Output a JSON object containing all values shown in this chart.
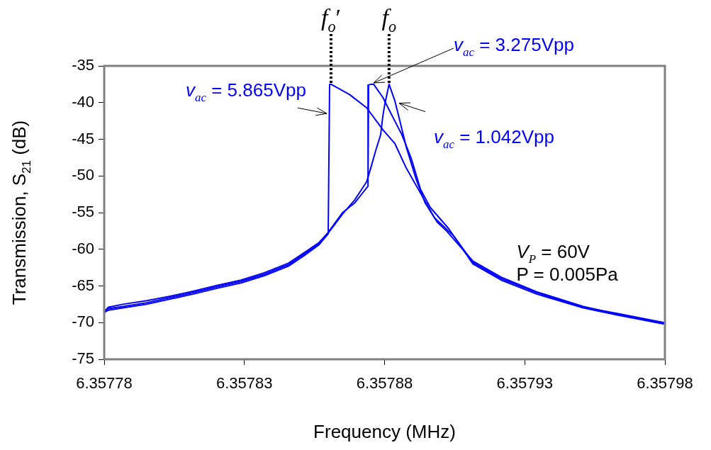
{
  "chart_data": {
    "type": "line",
    "xlabel": "Frequency (MHz)",
    "ylabel": "Transmission, S$_{21}$ (dB)",
    "xlim": [
      6.35778,
      6.35798
    ],
    "xticks": [
      6.35778,
      6.35783,
      6.35788,
      6.35793,
      6.35798
    ],
    "ylim": [
      -75,
      -35
    ],
    "yticks": [
      -75,
      -70,
      -65,
      -60,
      -55,
      -50,
      -45,
      -40,
      -35
    ],
    "series": [
      {
        "name": "v$_{ac}$ = 5.865Vpp",
        "color": "#0000ff",
        "x": [
          6.3579797,
          6.3579636,
          6.3579509,
          6.3579342,
          6.3579216,
          6.3579115,
          6.3579047,
          6.3578978,
          6.357892,
          6.3578877,
          6.3578837,
          6.3578794,
          6.3578736,
          6.3578675,
          6.3578609,
          6.3578604,
          6.3578599,
          6.3578566,
          6.3578516,
          6.3578457,
          6.3578371,
          6.3578288,
          6.3578205,
          6.3578119,
          6.3578035,
          6.3577952,
          6.3577866,
          6.3577815,
          6.35778
        ],
        "values": [
          -70.0,
          -68.8,
          -67.9,
          -65.9,
          -64.0,
          -61.8,
          -58.2,
          -55.7,
          -51.8,
          -48.9,
          -45.6,
          -43.7,
          -40.7,
          -38.9,
          -37.5,
          -37.5,
          -57.9,
          -59.3,
          -60.6,
          -62.1,
          -63.4,
          -64.4,
          -65.1,
          -65.9,
          -66.6,
          -67.3,
          -67.8,
          -68.1,
          -68.5
        ]
      },
      {
        "name": "v$_{ac}$ = 3.275Vpp",
        "color": "#0000ff",
        "x": [
          6.3579797,
          6.3579636,
          6.3579509,
          6.3579342,
          6.3579216,
          6.3579115,
          6.3579029,
          6.3578963,
          6.3578928,
          6.3578895,
          6.3578862,
          6.3578827,
          6.3578794,
          6.3578761,
          6.3578751,
          6.3578743,
          6.3578741,
          6.3578693,
          6.357865,
          6.3578599,
          6.3578566,
          6.3578516,
          6.3578457,
          6.3578371,
          6.3578288,
          6.3578205,
          6.3578119,
          6.3578035,
          6.3577952,
          6.3577866,
          6.3577815,
          6.35778
        ],
        "values": [
          -70.2,
          -69.0,
          -68.0,
          -66.1,
          -64.2,
          -62.0,
          -57.2,
          -54.3,
          -51.8,
          -47.6,
          -44.4,
          -41.8,
          -39.3,
          -37.5,
          -37.5,
          -37.6,
          -51.4,
          -53.7,
          -55.0,
          -57.7,
          -59.1,
          -60.4,
          -61.9,
          -63.2,
          -64.2,
          -64.9,
          -65.7,
          -66.4,
          -67.0,
          -67.5,
          -67.9,
          -68.5
        ]
      },
      {
        "name": "v$_{ac}$ = 1.042Vpp",
        "color": "#0000ff",
        "x": [
          6.3579797,
          6.3579636,
          6.3579509,
          6.3579342,
          6.3579216,
          6.3579115,
          6.3579021,
          6.3578988,
          6.3578945,
          6.3578913,
          6.3578877,
          6.3578852,
          6.3578837,
          6.3578816,
          6.3578801,
          6.3578794,
          6.3578786,
          6.3578768,
          6.3578751,
          6.3578736,
          6.3578693,
          6.357865,
          6.3578599,
          6.3578566,
          6.3578516,
          6.3578457,
          6.3578371,
          6.3578288,
          6.3578205,
          6.3578119,
          6.3578035,
          6.3577952,
          6.3577866,
          6.3577815,
          6.35778
        ],
        "values": [
          -70.1,
          -68.9,
          -67.8,
          -65.8,
          -63.8,
          -61.6,
          -57.5,
          -56.3,
          -53.7,
          -50.5,
          -46.0,
          -42.1,
          -39.8,
          -37.5,
          -40.2,
          -41.8,
          -44.4,
          -46.6,
          -48.9,
          -50.8,
          -53.3,
          -55.2,
          -57.8,
          -59.4,
          -60.8,
          -62.3,
          -63.6,
          -64.6,
          -65.3,
          -66.1,
          -66.8,
          -67.5,
          -68.0,
          -68.3,
          -68.6
        ]
      }
    ],
    "ref_lines": [
      {
        "axis": "x",
        "value": 6.3578609,
        "label": "f$_{o}$′",
        "line_style": "dotted",
        "color": "#000000"
      },
      {
        "axis": "x",
        "value": 6.3578816,
        "label": "f$_{o}$",
        "line_style": "dotted",
        "color": "#000000"
      }
    ],
    "annotations": [
      "V$_{P}$ = 60V",
      "P = 0.005Pa"
    ]
  }
}
